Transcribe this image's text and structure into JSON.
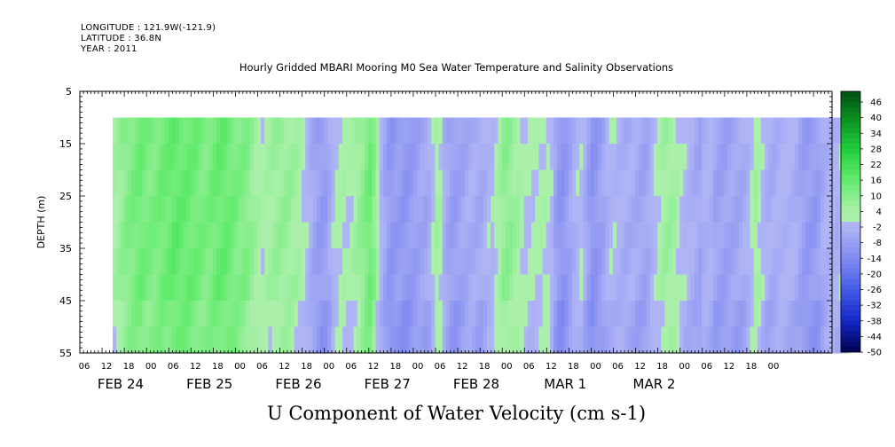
{
  "header": {
    "longitude": "LONGITUDE : 121.9W(-121.9)",
    "latitude": "LATITUDE : 36.8N",
    "year": "YEAR : 2011"
  },
  "chart_data": {
    "type": "heatmap",
    "title": "Hourly Gridded MBARI Mooring M0 Sea Water Temperature and Salinity Observations",
    "xlabel": "U Component of Water Velocity (cm s-1)",
    "ylabel": "DEPTH (m)",
    "ylim": [
      55,
      5
    ],
    "yticks": [
      5,
      15,
      25,
      35,
      45,
      55
    ],
    "data_depth_range": [
      10,
      55
    ],
    "x_hour_ticks": [
      "06",
      "12",
      "18",
      "00",
      "06",
      "12",
      "18",
      "00",
      "06",
      "12",
      "18",
      "00",
      "06",
      "12",
      "18",
      "00",
      "06",
      "12",
      "18",
      "00",
      "06",
      "12",
      "18",
      "00",
      "06",
      "12",
      "18",
      "00",
      "06",
      "12",
      "18",
      "00"
    ],
    "x_day_labels": [
      "FEB 24",
      "FEB 25",
      "FEB 26",
      "FEB 27",
      "FEB 28",
      "MAR  1",
      "MAR  2"
    ],
    "colorbar": {
      "labels": [
        "46",
        "40",
        "34",
        "28",
        "22",
        "16",
        "10",
        "4",
        "-2",
        "-8",
        "-14",
        "-20",
        "-26",
        "-32",
        "-38",
        "-44",
        "-50"
      ],
      "range": [
        -50,
        50
      ]
    },
    "u_velocity_by_hour": [
      5,
      6,
      8,
      10,
      11,
      12,
      13,
      14,
      13,
      12,
      12,
      12,
      13,
      14,
      14,
      15,
      16,
      16,
      15,
      15,
      15,
      14,
      14,
      13,
      12,
      12,
      13,
      14,
      15,
      15,
      15,
      14,
      13,
      12,
      11,
      11,
      10,
      8,
      6,
      4,
      3,
      4,
      5,
      6,
      7,
      7,
      7,
      7,
      6,
      5,
      4,
      2,
      -1,
      -4,
      -6,
      -8,
      -9,
      -8,
      -5,
      -1,
      2,
      3,
      3,
      2,
      3,
      5,
      7,
      9,
      12,
      14,
      10,
      4,
      -2,
      -6,
      -9,
      -10,
      -9,
      -9,
      -10,
      -10,
      -9,
      -8,
      -7,
      -6,
      -6,
      -4,
      1,
      5,
      3,
      -3,
      -6,
      -8,
      -8,
      -7,
      -6,
      -5,
      -4,
      -4,
      -5,
      -5,
      -3,
      -1,
      -1,
      3,
      5,
      8,
      9,
      8,
      6,
      5,
      3,
      1,
      1,
      1,
      2,
      3,
      3,
      2,
      -1,
      -7,
      -10,
      -11,
      -9,
      -6,
      -3,
      -1,
      0,
      -4,
      -8,
      -11,
      -10,
      -8,
      -6,
      -3,
      -1,
      -1,
      -2,
      -3,
      -4,
      -4,
      -4,
      -5,
      -6,
      -6,
      -5,
      -2,
      1,
      3,
      5,
      6,
      6,
      5,
      3,
      1,
      -1,
      -2,
      -3,
      -5,
      -6,
      -3,
      -2,
      -3,
      -6,
      -7,
      -7,
      -7,
      -6,
      -6,
      -6,
      -5,
      -4,
      -2,
      1,
      5,
      3,
      -1,
      -3,
      -4,
      -4,
      -3,
      -2,
      -2,
      -2,
      -3,
      -4,
      -6,
      -8,
      -9,
      -9,
      -9,
      -8,
      -5,
      -3,
      -2,
      -2,
      -3,
      -1,
      4,
      3
    ]
  }
}
